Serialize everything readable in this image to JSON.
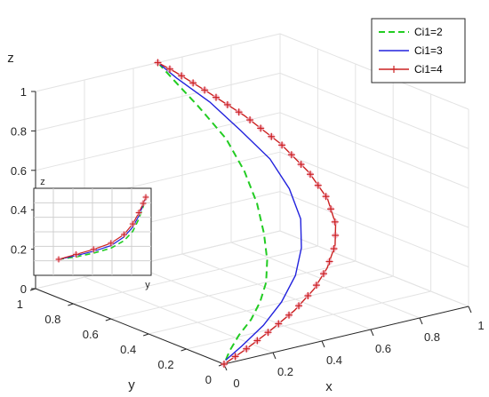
{
  "chart_data": [
    {
      "type": "line",
      "title": "",
      "xlabel": "x",
      "ylabel": "y",
      "zlabel": "z",
      "xlim": [
        0,
        1
      ],
      "ylim": [
        0,
        1
      ],
      "zlim": [
        0,
        1
      ],
      "x_ticks": [
        "0",
        "0.2",
        "0.4",
        "0.6",
        "0.8",
        "1"
      ],
      "y_ticks": [
        "0",
        "0.2",
        "0.4",
        "0.6",
        "0.8",
        "1"
      ],
      "z_ticks": [
        "0",
        "0.2",
        "0.4",
        "0.6",
        "0.8",
        "1"
      ],
      "grid": true,
      "legend_position": "top-right",
      "series": [
        {
          "name": "Ci1=2",
          "color": "#22cc22",
          "style": "dashed",
          "points": [
            [
              0.03,
              0.03,
              0.0
            ],
            [
              0.1,
              0.1,
              0.0
            ],
            [
              0.2,
              0.18,
              0.02
            ],
            [
              0.28,
              0.22,
              0.06
            ],
            [
              0.34,
              0.25,
              0.12
            ],
            [
              0.38,
              0.27,
              0.2
            ],
            [
              0.4,
              0.29,
              0.3
            ],
            [
              0.41,
              0.32,
              0.42
            ],
            [
              0.42,
              0.37,
              0.55
            ],
            [
              0.43,
              0.45,
              0.68
            ],
            [
              0.44,
              0.56,
              0.8
            ],
            [
              0.45,
              0.72,
              0.9
            ],
            [
              0.47,
              0.85,
              0.95
            ],
            [
              0.5,
              1.0,
              1.0
            ]
          ]
        },
        {
          "name": "Ci1=3",
          "color": "#2222dd",
          "style": "solid",
          "points": [
            [
              0.03,
              0.03,
              0.0
            ],
            [
              0.15,
              0.1,
              0.01
            ],
            [
              0.3,
              0.18,
              0.04
            ],
            [
              0.42,
              0.24,
              0.1
            ],
            [
              0.5,
              0.27,
              0.2
            ],
            [
              0.54,
              0.29,
              0.32
            ],
            [
              0.56,
              0.32,
              0.45
            ],
            [
              0.56,
              0.38,
              0.58
            ],
            [
              0.55,
              0.47,
              0.7
            ],
            [
              0.53,
              0.6,
              0.8
            ],
            [
              0.52,
              0.75,
              0.89
            ],
            [
              0.5,
              0.9,
              0.96
            ],
            [
              0.5,
              1.0,
              1.0
            ]
          ]
        },
        {
          "name": "Ci1=4",
          "color": "#cc2222",
          "style": "solid-plus-markers",
          "points": [
            [
              0.0,
              0.0,
              0.0
            ],
            [
              0.15,
              0.08,
              0.0
            ],
            [
              0.3,
              0.15,
              0.02
            ],
            [
              0.45,
              0.21,
              0.06
            ],
            [
              0.56,
              0.25,
              0.12
            ],
            [
              0.63,
              0.27,
              0.2
            ],
            [
              0.67,
              0.28,
              0.3
            ],
            [
              0.68,
              0.29,
              0.4
            ],
            [
              0.67,
              0.32,
              0.52
            ],
            [
              0.64,
              0.38,
              0.64
            ],
            [
              0.6,
              0.48,
              0.76
            ],
            [
              0.56,
              0.62,
              0.86
            ],
            [
              0.53,
              0.78,
              0.93
            ],
            [
              0.51,
              0.92,
              0.98
            ],
            [
              0.5,
              1.0,
              1.0
            ]
          ]
        }
      ]
    },
    {
      "type": "line",
      "title": "",
      "xlabel": "y",
      "ylabel": "z",
      "grid": true,
      "series": [
        {
          "name": "Ci1=2",
          "color": "#22cc22",
          "style": "dashed",
          "points": [
            [
              0.0,
              0.0
            ],
            [
              0.2,
              0.04
            ],
            [
              0.4,
              0.1
            ],
            [
              0.6,
              0.18
            ],
            [
              0.75,
              0.3
            ],
            [
              0.85,
              0.45
            ],
            [
              0.92,
              0.65
            ],
            [
              0.97,
              0.85
            ],
            [
              1.0,
              1.0
            ]
          ]
        },
        {
          "name": "Ci1=3",
          "color": "#2222dd",
          "style": "solid",
          "points": [
            [
              0.0,
              0.0
            ],
            [
              0.2,
              0.06
            ],
            [
              0.4,
              0.13
            ],
            [
              0.6,
              0.22
            ],
            [
              0.75,
              0.36
            ],
            [
              0.85,
              0.52
            ],
            [
              0.92,
              0.7
            ],
            [
              0.97,
              0.88
            ],
            [
              1.0,
              1.0
            ]
          ]
        },
        {
          "name": "Ci1=4",
          "color": "#cc2222",
          "style": "solid-plus-markers",
          "points": [
            [
              0.0,
              0.0
            ],
            [
              0.2,
              0.08
            ],
            [
              0.4,
              0.16
            ],
            [
              0.6,
              0.26
            ],
            [
              0.75,
              0.4
            ],
            [
              0.85,
              0.57
            ],
            [
              0.92,
              0.75
            ],
            [
              0.97,
              0.9
            ],
            [
              1.0,
              1.0
            ]
          ]
        }
      ]
    }
  ]
}
